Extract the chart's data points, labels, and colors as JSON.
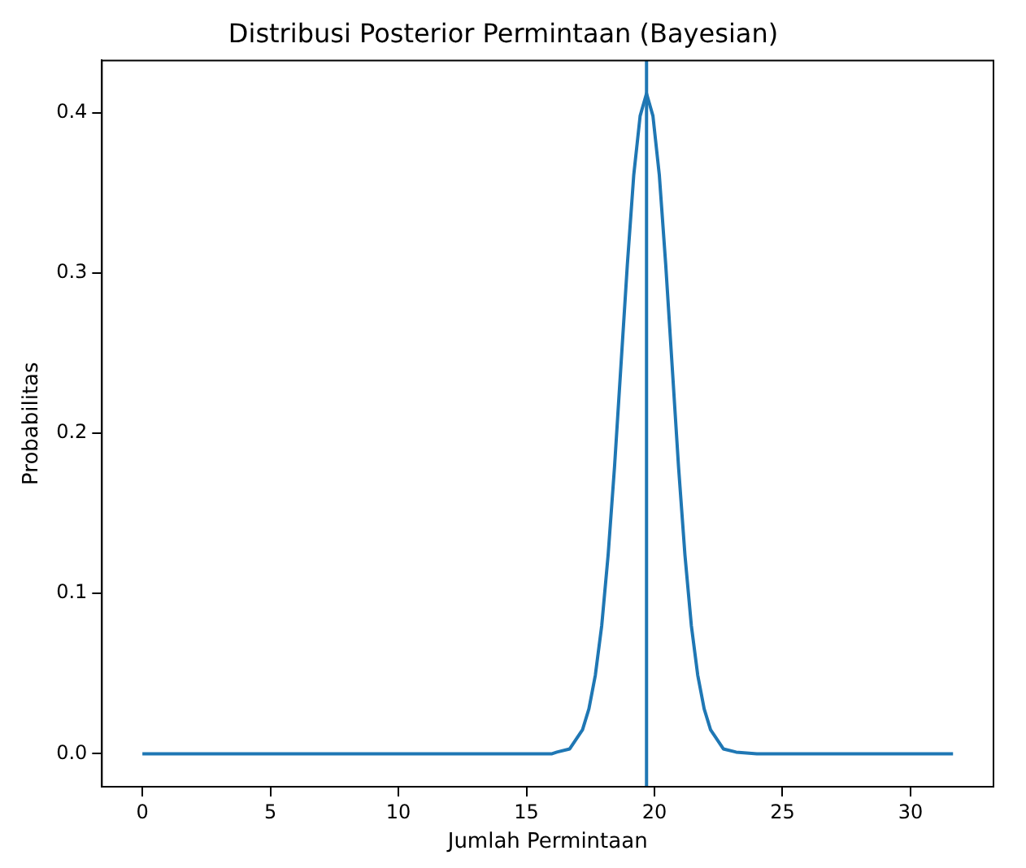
{
  "chart_data": {
    "type": "line",
    "title": "Distribusi Posterior Permintaan (Bayesian)",
    "xlabel": "Jumlah Permintaan",
    "ylabel": "Probabilitas",
    "x": [
      0,
      5,
      10,
      15,
      16,
      16.19,
      16.69,
      17.19,
      17.44,
      17.69,
      17.94,
      18.19,
      18.44,
      18.69,
      18.94,
      19.19,
      19.44,
      19.69,
      19.94,
      20.19,
      20.44,
      20.69,
      20.94,
      21.19,
      21.44,
      21.69,
      21.94,
      22.19,
      22.69,
      23.19,
      24,
      28,
      31.66
    ],
    "series": [
      {
        "color": "#1f77b4",
        "values": [
          0,
          0,
          0,
          0,
          0,
          0.001,
          0.003,
          0.015,
          0.028,
          0.049,
          0.08,
          0.124,
          0.179,
          0.242,
          0.305,
          0.361,
          0.398,
          0.412,
          0.398,
          0.361,
          0.305,
          0.242,
          0.179,
          0.124,
          0.08,
          0.049,
          0.028,
          0.015,
          0.003,
          0.001,
          0,
          0,
          0
        ]
      }
    ],
    "xlim": [
      -1.58,
      33.24
    ],
    "xticks": [
      0,
      5,
      10,
      15,
      20,
      25,
      30
    ],
    "ylim": [
      -0.0206,
      0.4326
    ],
    "yticks": [
      {
        "value": 0,
        "label": "0.0"
      },
      {
        "value": 0.1,
        "label": "0.1"
      },
      {
        "value": 0.2,
        "label": "0.2"
      },
      {
        "value": 0.3,
        "label": "0.3"
      },
      {
        "value": 0.4,
        "label": "0.4"
      }
    ],
    "ref_lines": [
      {
        "axis": "x",
        "value": 19.69,
        "color": "#1f77b4"
      }
    ],
    "grid": false,
    "legend": false,
    "marker": "none",
    "line_style": "solid"
  }
}
